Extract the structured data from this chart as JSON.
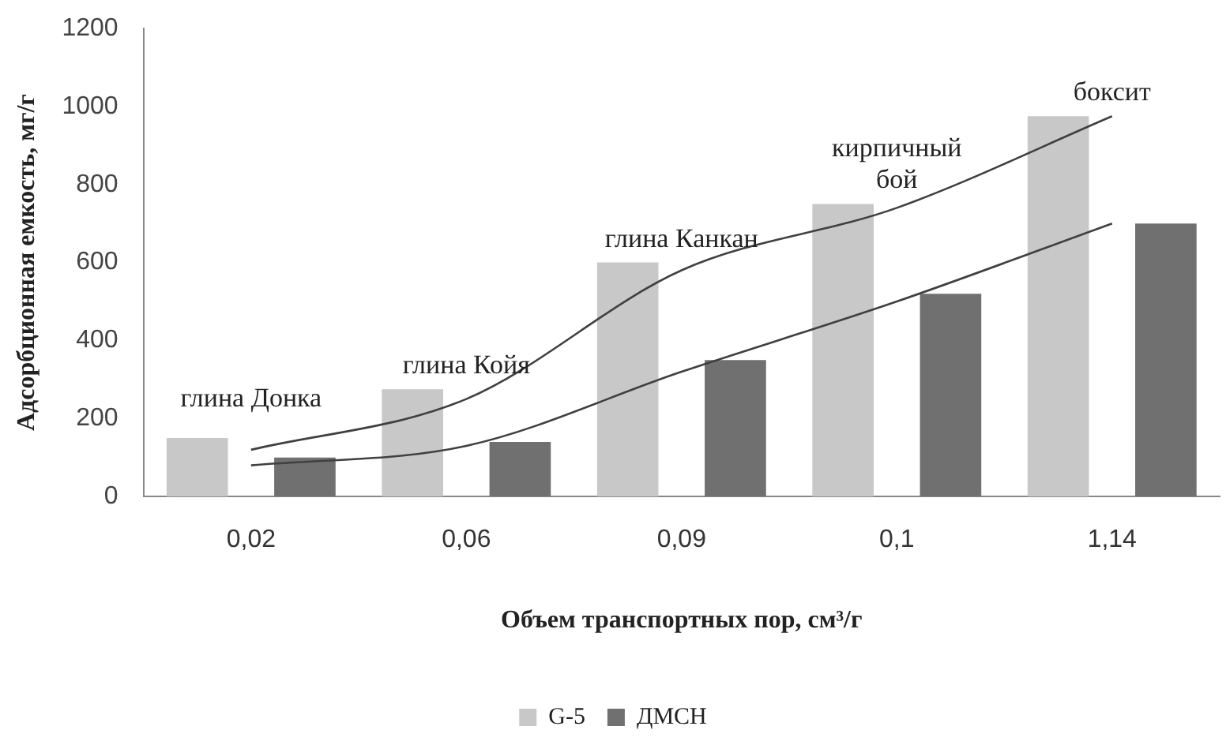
{
  "chart_data": {
    "type": "bar",
    "xlabel": "Объем транспортных пор, см³/г",
    "ylabel": "Адсорбционная емкость, мг/г",
    "categories": [
      "0,02",
      "0,06",
      "0,09",
      "0,1",
      "1,14"
    ],
    "series": [
      {
        "name": "G-5",
        "color": "#c8c8c8",
        "values": [
          150,
          275,
          600,
          750,
          975
        ]
      },
      {
        "name": "ДМСН",
        "color": "#707070",
        "values": [
          100,
          140,
          350,
          520,
          700
        ]
      },
      {
        "type": "line",
        "color": "#404040",
        "values": [
          120,
          250,
          580,
          740,
          975
        ]
      },
      {
        "type": "line",
        "color": "#404040",
        "values": [
          80,
          130,
          320,
          500,
          700
        ]
      }
    ],
    "ylim": [
      0,
      1200
    ],
    "yticks": [
      0,
      200,
      400,
      600,
      800,
      1000,
      1200
    ],
    "grid": false,
    "legend": "bottom",
    "marker": "none",
    "annotations": [
      "глина Донка",
      {
        "text": "глина Койя",
        "x": "0,06",
        "y": 275
      },
      {
        "text": "глина Канкан",
        "x": "0,09",
        "y": 600
      },
      {
        "text": "кирпичный\nбой",
        "x": "0,1",
        "y": 750
      },
      {
        "text": "боксит",
        "x": "1,14",
        "y": 975
      }
    ]
  }
}
